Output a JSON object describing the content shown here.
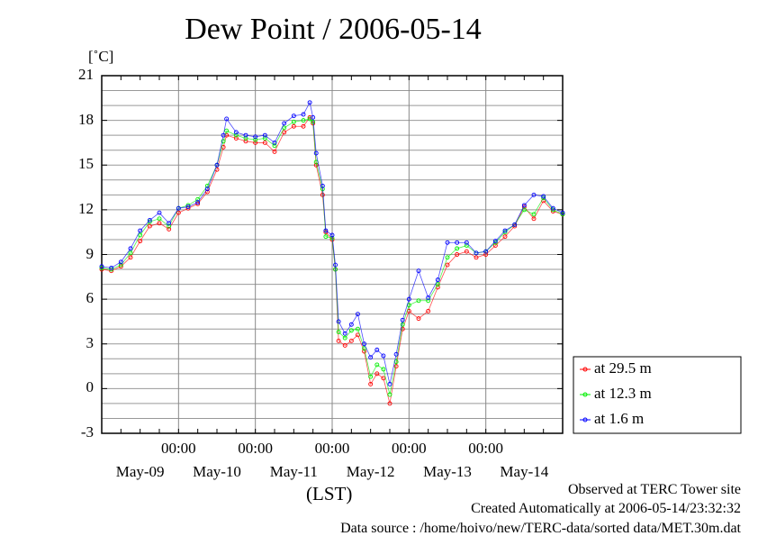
{
  "chart_data": {
    "type": "line",
    "title": "Dew Point / 2006-05-14",
    "ylabel": "[˚C]",
    "xlabel": "(LST)",
    "ylim": [
      -3,
      21
    ],
    "yticks": [
      "-3",
      "0",
      "3",
      "6",
      "9",
      "12",
      "15",
      "18",
      "21"
    ],
    "ytick_values": [
      -3,
      0,
      3,
      6,
      9,
      12,
      15,
      18,
      21
    ],
    "x_unit": "hours since May-09 00:00",
    "xlim": [
      0,
      144
    ],
    "xtick_hours": [
      24,
      48,
      72,
      96,
      120
    ],
    "xtick_label": "00:00",
    "date_labels": [
      "May-09",
      "May-10",
      "May-11",
      "May-12",
      "May-13",
      "May-14"
    ],
    "grid": true,
    "legend_position": "right-bottom outside",
    "x": [
      0,
      3,
      6,
      9,
      12,
      15,
      18,
      21,
      24,
      27,
      30,
      33,
      36,
      38,
      39,
      42,
      45,
      48,
      51,
      54,
      57,
      60,
      63,
      65,
      66,
      67,
      69,
      70,
      72,
      73,
      74,
      76,
      78,
      80,
      82,
      84,
      86,
      88,
      90,
      92,
      94,
      96,
      99,
      102,
      105,
      108,
      111,
      114,
      117,
      120,
      123,
      126,
      129,
      132,
      135,
      138,
      141,
      144
    ],
    "series": [
      {
        "name": "at 29.5 m",
        "color": "#ff0000",
        "values": [
          8.0,
          7.9,
          8.2,
          8.8,
          9.9,
          10.9,
          11.1,
          10.7,
          11.8,
          12.1,
          12.4,
          13.2,
          14.7,
          16.2,
          17.0,
          16.8,
          16.6,
          16.5,
          16.5,
          15.9,
          17.2,
          17.6,
          17.6,
          18.2,
          17.8,
          15.0,
          13.0,
          10.5,
          10.0,
          8.0,
          3.2,
          2.9,
          3.2,
          3.6,
          2.5,
          0.3,
          1.0,
          0.7,
          -1.0,
          1.5,
          4.0,
          5.2,
          4.7,
          5.2,
          6.8,
          8.3,
          9.0,
          9.2,
          8.8,
          9.0,
          9.6,
          10.2,
          10.9,
          12.2,
          11.4,
          12.6,
          11.9,
          11.7
        ]
      },
      {
        "name": "at 12.3 m",
        "color": "#00ee00",
        "values": [
          8.1,
          8.0,
          8.3,
          9.1,
          10.3,
          11.2,
          11.4,
          10.9,
          12.1,
          12.3,
          12.7,
          13.6,
          15.0,
          16.6,
          17.3,
          17.0,
          16.8,
          16.7,
          16.8,
          16.3,
          17.5,
          17.9,
          18.0,
          18.1,
          17.9,
          15.2,
          13.4,
          10.2,
          10.1,
          8.0,
          3.8,
          3.4,
          3.9,
          4.0,
          2.7,
          0.8,
          1.6,
          1.3,
          -0.4,
          1.8,
          4.3,
          5.6,
          5.9,
          5.9,
          7.0,
          8.8,
          9.4,
          9.6,
          9.1,
          9.2,
          9.8,
          10.5,
          11.0,
          12.0,
          11.7,
          12.8,
          12.0,
          11.7
        ]
      },
      {
        "name": "at 1.6 m",
        "color": "#0000ff",
        "values": [
          8.2,
          8.1,
          8.5,
          9.4,
          10.6,
          11.3,
          11.8,
          11.1,
          12.1,
          12.2,
          12.5,
          13.4,
          15.0,
          17.0,
          18.1,
          17.2,
          17.0,
          16.9,
          17.0,
          16.5,
          17.8,
          18.3,
          18.4,
          19.2,
          18.2,
          15.8,
          13.6,
          10.6,
          10.3,
          8.3,
          4.5,
          3.7,
          4.3,
          5.0,
          3.0,
          2.1,
          2.6,
          2.2,
          0.3,
          2.3,
          4.6,
          6.0,
          7.9,
          6.1,
          7.3,
          9.8,
          9.8,
          9.8,
          9.1,
          9.2,
          9.9,
          10.6,
          11.0,
          12.3,
          13.0,
          12.9,
          12.1,
          11.8
        ]
      }
    ]
  },
  "footer": {
    "observed": "Observed at TERC Tower site",
    "created": "Created Automatically at 2006-05-14/23:32:32",
    "source": "Data source : /home/hoivo/new/TERC-data/sorted  data/MET.30m.dat"
  }
}
